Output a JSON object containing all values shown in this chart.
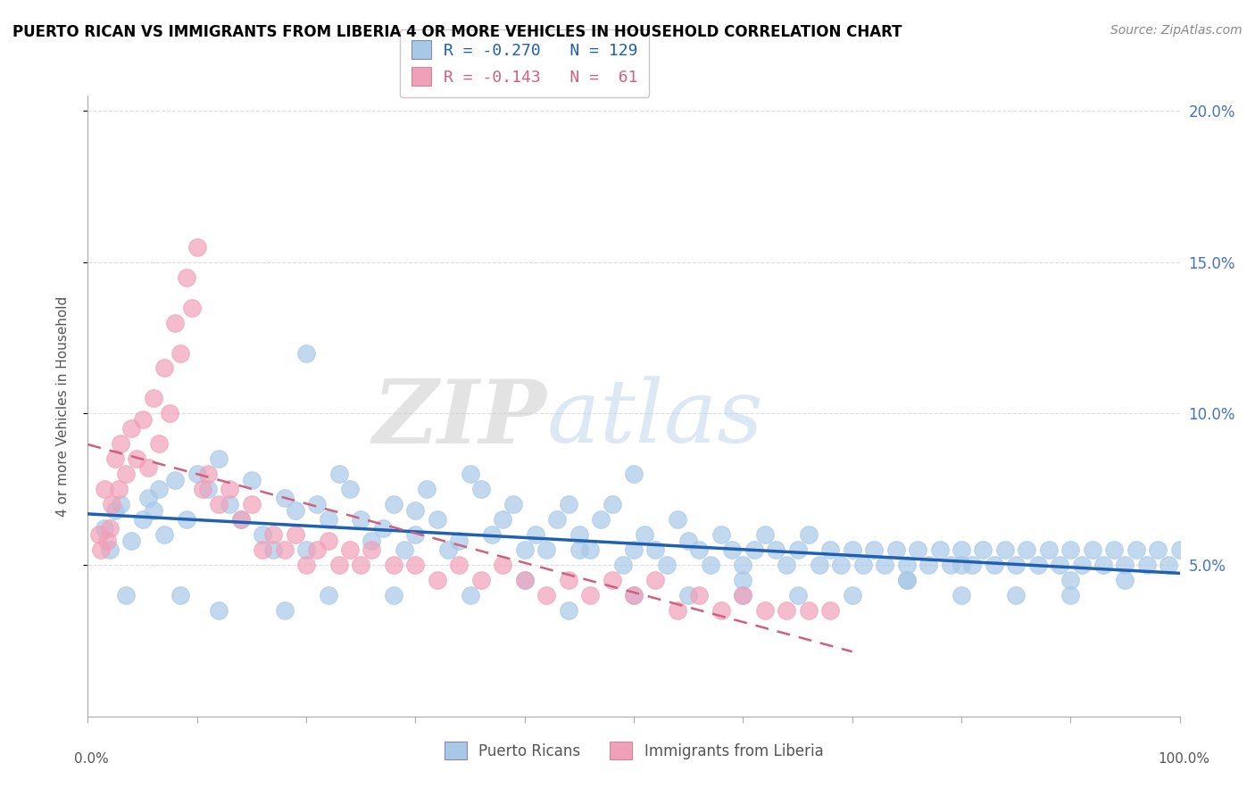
{
  "title": "PUERTO RICAN VS IMMIGRANTS FROM LIBERIA 4 OR MORE VEHICLES IN HOUSEHOLD CORRELATION CHART",
  "source": "Source: ZipAtlas.com",
  "ylabel": "4 or more Vehicles in Household",
  "color_blue": "#A8C8E8",
  "color_pink": "#F0A0B8",
  "line_color_blue": "#2060B0",
  "line_color_pink": "#D06080",
  "watermark_zip": "ZIP",
  "watermark_atlas": "atlas",
  "xlim": [
    0,
    100
  ],
  "ylim": [
    0,
    20
  ],
  "ytick_positions": [
    5.0,
    10.0,
    15.0,
    20.0
  ],
  "ytick_labels": [
    "5.0%",
    "10.0%",
    "15.0%",
    "20.0%"
  ],
  "xtick_positions": [
    0,
    10,
    20,
    30,
    40,
    50,
    60,
    70,
    80,
    90,
    100
  ],
  "blue_x": [
    1.5,
    2.0,
    2.5,
    3.0,
    4.0,
    5.0,
    5.5,
    6.0,
    6.5,
    7.0,
    8.0,
    9.0,
    10.0,
    11.0,
    12.0,
    13.0,
    14.0,
    15.0,
    16.0,
    17.0,
    18.0,
    19.0,
    20.0,
    21.0,
    22.0,
    23.0,
    24.0,
    25.0,
    26.0,
    27.0,
    28.0,
    29.0,
    30.0,
    31.0,
    32.0,
    33.0,
    34.0,
    35.0,
    36.0,
    37.0,
    38.0,
    39.0,
    40.0,
    41.0,
    42.0,
    43.0,
    44.0,
    45.0,
    46.0,
    47.0,
    48.0,
    49.0,
    50.0,
    51.0,
    52.0,
    53.0,
    54.0,
    55.0,
    56.0,
    57.0,
    58.0,
    59.0,
    60.0,
    61.0,
    62.0,
    63.0,
    64.0,
    65.0,
    66.0,
    67.0,
    68.0,
    69.0,
    70.0,
    71.0,
    72.0,
    73.0,
    74.0,
    75.0,
    76.0,
    77.0,
    78.0,
    79.0,
    80.0,
    81.0,
    82.0,
    83.0,
    84.0,
    85.0,
    86.0,
    87.0,
    88.0,
    89.0,
    90.0,
    91.0,
    92.0,
    93.0,
    94.0,
    95.0,
    96.0,
    97.0,
    98.0,
    99.0,
    100.0,
    3.5,
    8.5,
    12.0,
    18.0,
    22.0,
    28.0,
    35.0,
    40.0,
    44.0,
    50.0,
    55.0,
    60.0,
    65.0,
    70.0,
    75.0,
    80.0,
    85.0,
    90.0,
    95.0,
    30.0,
    45.0,
    60.0,
    75.0,
    90.0,
    20.0,
    50.0,
    80.0
  ],
  "blue_y": [
    6.2,
    5.5,
    6.8,
    7.0,
    5.8,
    6.5,
    7.2,
    6.8,
    7.5,
    6.0,
    7.8,
    6.5,
    8.0,
    7.5,
    8.5,
    7.0,
    6.5,
    7.8,
    6.0,
    5.5,
    7.2,
    6.8,
    5.5,
    7.0,
    6.5,
    8.0,
    7.5,
    6.5,
    5.8,
    6.2,
    7.0,
    5.5,
    6.8,
    7.5,
    6.5,
    5.5,
    5.8,
    8.0,
    7.5,
    6.0,
    6.5,
    7.0,
    5.5,
    6.0,
    5.5,
    6.5,
    7.0,
    6.0,
    5.5,
    6.5,
    7.0,
    5.0,
    5.5,
    6.0,
    5.5,
    5.0,
    6.5,
    5.8,
    5.5,
    5.0,
    6.0,
    5.5,
    5.0,
    5.5,
    6.0,
    5.5,
    5.0,
    5.5,
    6.0,
    5.0,
    5.5,
    5.0,
    5.5,
    5.0,
    5.5,
    5.0,
    5.5,
    5.0,
    5.5,
    5.0,
    5.5,
    5.0,
    5.5,
    5.0,
    5.5,
    5.0,
    5.5,
    5.0,
    5.5,
    5.0,
    5.5,
    5.0,
    5.5,
    5.0,
    5.5,
    5.0,
    5.5,
    5.0,
    5.5,
    5.0,
    5.5,
    5.0,
    5.5,
    4.0,
    4.0,
    3.5,
    3.5,
    4.0,
    4.0,
    4.0,
    4.5,
    3.5,
    4.0,
    4.0,
    4.0,
    4.0,
    4.0,
    4.5,
    4.0,
    4.0,
    4.0,
    4.5,
    6.0,
    5.5,
    4.5,
    4.5,
    4.5,
    12.0,
    8.0,
    5.0
  ],
  "pink_x": [
    1.0,
    1.2,
    1.5,
    1.8,
    2.0,
    2.2,
    2.5,
    2.8,
    3.0,
    3.5,
    4.0,
    4.5,
    5.0,
    5.5,
    6.0,
    6.5,
    7.0,
    7.5,
    8.0,
    8.5,
    9.0,
    9.5,
    10.0,
    10.5,
    11.0,
    12.0,
    13.0,
    14.0,
    15.0,
    16.0,
    17.0,
    18.0,
    19.0,
    20.0,
    21.0,
    22.0,
    23.0,
    24.0,
    25.0,
    26.0,
    28.0,
    30.0,
    32.0,
    34.0,
    36.0,
    38.0,
    40.0,
    42.0,
    44.0,
    46.0,
    48.0,
    50.0,
    52.0,
    54.0,
    56.0,
    58.0,
    60.0,
    62.0,
    64.0,
    66.0,
    68.0
  ],
  "pink_y": [
    6.0,
    5.5,
    7.5,
    5.8,
    6.2,
    7.0,
    8.5,
    7.5,
    9.0,
    8.0,
    9.5,
    8.5,
    9.8,
    8.2,
    10.5,
    9.0,
    11.5,
    10.0,
    13.0,
    12.0,
    14.5,
    13.5,
    15.5,
    7.5,
    8.0,
    7.0,
    7.5,
    6.5,
    7.0,
    5.5,
    6.0,
    5.5,
    6.0,
    5.0,
    5.5,
    5.8,
    5.0,
    5.5,
    5.0,
    5.5,
    5.0,
    5.0,
    4.5,
    5.0,
    4.5,
    5.0,
    4.5,
    4.0,
    4.5,
    4.0,
    4.5,
    4.0,
    4.5,
    3.5,
    4.0,
    3.5,
    4.0,
    3.5,
    3.5,
    3.5,
    3.5
  ]
}
